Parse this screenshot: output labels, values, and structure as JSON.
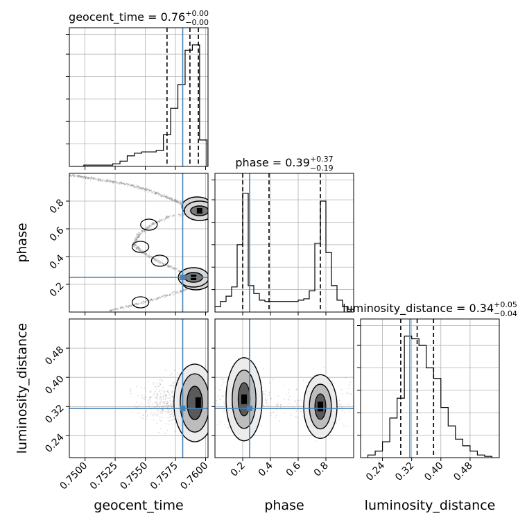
{
  "colors": {
    "truth": "#4682b4",
    "hist": "#000000",
    "grid": "#b0b0b0",
    "scatter": "#888888"
  },
  "chart_data": [
    {
      "type": "histogram",
      "parameter": "geocent_time",
      "title": {
        "label": "geocent_time = 0.76",
        "plus": "+0.00",
        "minus": "−0.00"
      },
      "xlim": [
        0.7487,
        0.7602
      ],
      "ylim": [
        0,
        1
      ],
      "bin_edges": [
        0.7487,
        0.7493,
        0.7499,
        0.7505,
        0.7511,
        0.7517,
        0.7523,
        0.7529,
        0.7535,
        0.7541,
        0.7547,
        0.7553,
        0.7559,
        0.7565,
        0.7571,
        0.7577,
        0.7583,
        0.7589,
        0.7595,
        0.7601
      ],
      "counts": [
        0.0,
        0.0,
        0.01,
        0.01,
        0.01,
        0.01,
        0.02,
        0.04,
        0.08,
        0.1,
        0.11,
        0.11,
        0.12,
        0.24,
        0.44,
        0.62,
        0.88,
        0.92,
        0.2
      ],
      "quantiles": [
        0.7568,
        0.7587,
        0.7594
      ],
      "truth": 0.7581
    },
    {
      "type": "histogram",
      "parameter": "phase",
      "title": {
        "label": "phase = 0.39",
        "plus": "+0.37",
        "minus": "−0.19"
      },
      "xlim": [
        0.0,
        1.0
      ],
      "ylim": [
        0,
        1
      ],
      "bin_edges": [
        0.0,
        0.04,
        0.08,
        0.12,
        0.16,
        0.2,
        0.24,
        0.28,
        0.32,
        0.36,
        0.4,
        0.44,
        0.48,
        0.52,
        0.56,
        0.6,
        0.64,
        0.68,
        0.72,
        0.76,
        0.8,
        0.84,
        0.88,
        0.92,
        0.96,
        1.0
      ],
      "counts": [
        0.04,
        0.08,
        0.12,
        0.19,
        0.51,
        0.9,
        0.2,
        0.14,
        0.09,
        0.08,
        0.08,
        0.08,
        0.08,
        0.08,
        0.08,
        0.09,
        0.1,
        0.16,
        0.52,
        0.84,
        0.45,
        0.2,
        0.09,
        0.04,
        0.02
      ],
      "quantiles": [
        0.2,
        0.39,
        0.76
      ],
      "truth": 0.25
    },
    {
      "type": "histogram",
      "parameter": "luminosity_distance",
      "title": {
        "label": "luminosity_distance = 0.34",
        "plus": "+0.05",
        "minus": "−0.04"
      },
      "xlim": [
        0.18,
        0.56
      ],
      "ylim": [
        0,
        1
      ],
      "bin_edges": [
        0.2,
        0.22,
        0.24,
        0.26,
        0.28,
        0.3,
        0.32,
        0.34,
        0.36,
        0.38,
        0.4,
        0.42,
        0.44,
        0.46,
        0.48,
        0.5,
        0.52,
        0.54
      ],
      "counts": [
        0.02,
        0.05,
        0.12,
        0.3,
        0.45,
        0.92,
        0.9,
        0.85,
        0.68,
        0.6,
        0.38,
        0.24,
        0.14,
        0.09,
        0.05,
        0.02,
        0.01
      ],
      "quantiles": [
        0.29,
        0.335,
        0.38
      ],
      "truth": 0.315
    },
    {
      "type": "scatter",
      "x_param": "geocent_time",
      "y_param": "phase",
      "xlim": [
        0.7487,
        0.7602
      ],
      "ylim": [
        0.0,
        1.0
      ],
      "truth": [
        0.7581,
        0.25
      ],
      "structure_points": [
        [
          0.7487,
          0.99
        ],
        [
          0.75,
          0.97
        ],
        [
          0.7515,
          0.95
        ],
        [
          0.753,
          0.93
        ],
        [
          0.7545,
          0.9
        ],
        [
          0.7558,
          0.86
        ],
        [
          0.757,
          0.82
        ],
        [
          0.758,
          0.78
        ],
        [
          0.759,
          0.74
        ],
        [
          0.7598,
          0.72
        ],
        [
          0.757,
          0.69
        ],
        [
          0.7555,
          0.63
        ],
        [
          0.7545,
          0.56
        ],
        [
          0.754,
          0.49
        ],
        [
          0.7548,
          0.43
        ],
        [
          0.756,
          0.37
        ],
        [
          0.7575,
          0.31
        ],
        [
          0.759,
          0.25
        ],
        [
          0.7598,
          0.22
        ],
        [
          0.758,
          0.15
        ],
        [
          0.756,
          0.1
        ],
        [
          0.754,
          0.05
        ],
        [
          0.752,
          0.01
        ]
      ],
      "density_peaks": [
        [
          0.7593,
          0.76
        ],
        [
          0.7595,
          0.73
        ],
        [
          0.7592,
          0.23
        ],
        [
          0.759,
          0.25
        ]
      ]
    },
    {
      "type": "scatter",
      "x_param": "geocent_time",
      "y_param": "luminosity_distance",
      "xlim": [
        0.7487,
        0.7602
      ],
      "ylim": [
        0.18,
        0.56
      ],
      "truth": [
        0.7581,
        0.315
      ],
      "density_peaks": [
        [
          0.7592,
          0.34
        ],
        [
          0.7593,
          0.32
        ]
      ]
    },
    {
      "type": "scatter",
      "x_param": "phase",
      "y_param": "luminosity_distance",
      "xlim": [
        0.0,
        1.0
      ],
      "ylim": [
        0.18,
        0.56
      ],
      "truth": [
        0.25,
        0.315
      ],
      "density_peaks": [
        [
          0.22,
          0.34
        ],
        [
          0.76,
          0.32
        ]
      ]
    }
  ],
  "axes": {
    "geocent_time": {
      "label": "geocent_time",
      "ticks": [
        {
          "v": 0.75,
          "t": "0.7500"
        },
        {
          "v": 0.7525,
          "t": "0.7525"
        },
        {
          "v": 0.755,
          "t": "0.7550"
        },
        {
          "v": 0.7575,
          "t": "0.7575"
        },
        {
          "v": 0.76,
          "t": "0.7600"
        }
      ]
    },
    "phase": {
      "label": "phase",
      "ticks": [
        {
          "v": 0.2,
          "t": "0.2"
        },
        {
          "v": 0.4,
          "t": "0.4"
        },
        {
          "v": 0.6,
          "t": "0.6"
        },
        {
          "v": 0.8,
          "t": "0.8"
        }
      ]
    },
    "luminosity_distance": {
      "label": "luminosity_distance",
      "ticks": [
        {
          "v": 0.24,
          "t": "0.24"
        },
        {
          "v": 0.32,
          "t": "0.32"
        },
        {
          "v": 0.4,
          "t": "0.40"
        },
        {
          "v": 0.48,
          "t": "0.48"
        }
      ]
    }
  }
}
